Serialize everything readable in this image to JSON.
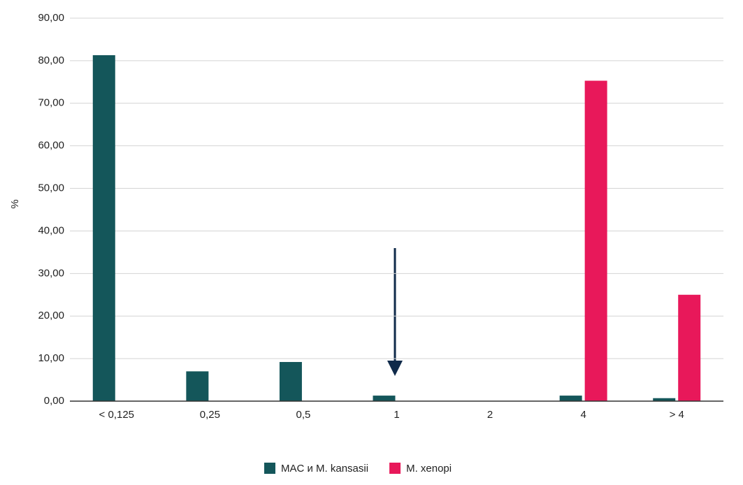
{
  "chart_data": {
    "type": "bar",
    "y_label": "%",
    "categories": [
      "< 0,125",
      "0,25",
      "0,5",
      "1",
      "2",
      "4",
      "> 4"
    ],
    "series": [
      {
        "name": "MAC и M. kansasii",
        "color": "#14565a",
        "values": [
          81.3,
          7.0,
          9.2,
          1.3,
          0,
          1.3,
          0.7
        ]
      },
      {
        "name": "M. xenopi",
        "color": "#e8185a",
        "values": [
          0,
          0,
          0,
          0,
          0,
          75.3,
          25.0
        ]
      }
    ],
    "ylim": [
      0,
      90
    ],
    "yticks": [
      {
        "value": 0,
        "label": "0,00"
      },
      {
        "value": 10,
        "label": "10,00"
      },
      {
        "value": 20,
        "label": "20,00"
      },
      {
        "value": 30,
        "label": "30,00"
      },
      {
        "value": 40,
        "label": "40,00"
      },
      {
        "value": 50,
        "label": "50,00"
      },
      {
        "value": 60,
        "label": "60,00"
      },
      {
        "value": 70,
        "label": "70,00"
      },
      {
        "value": 80,
        "label": "80,00"
      },
      {
        "value": 90,
        "label": "90,00"
      }
    ],
    "grid": true
  }
}
